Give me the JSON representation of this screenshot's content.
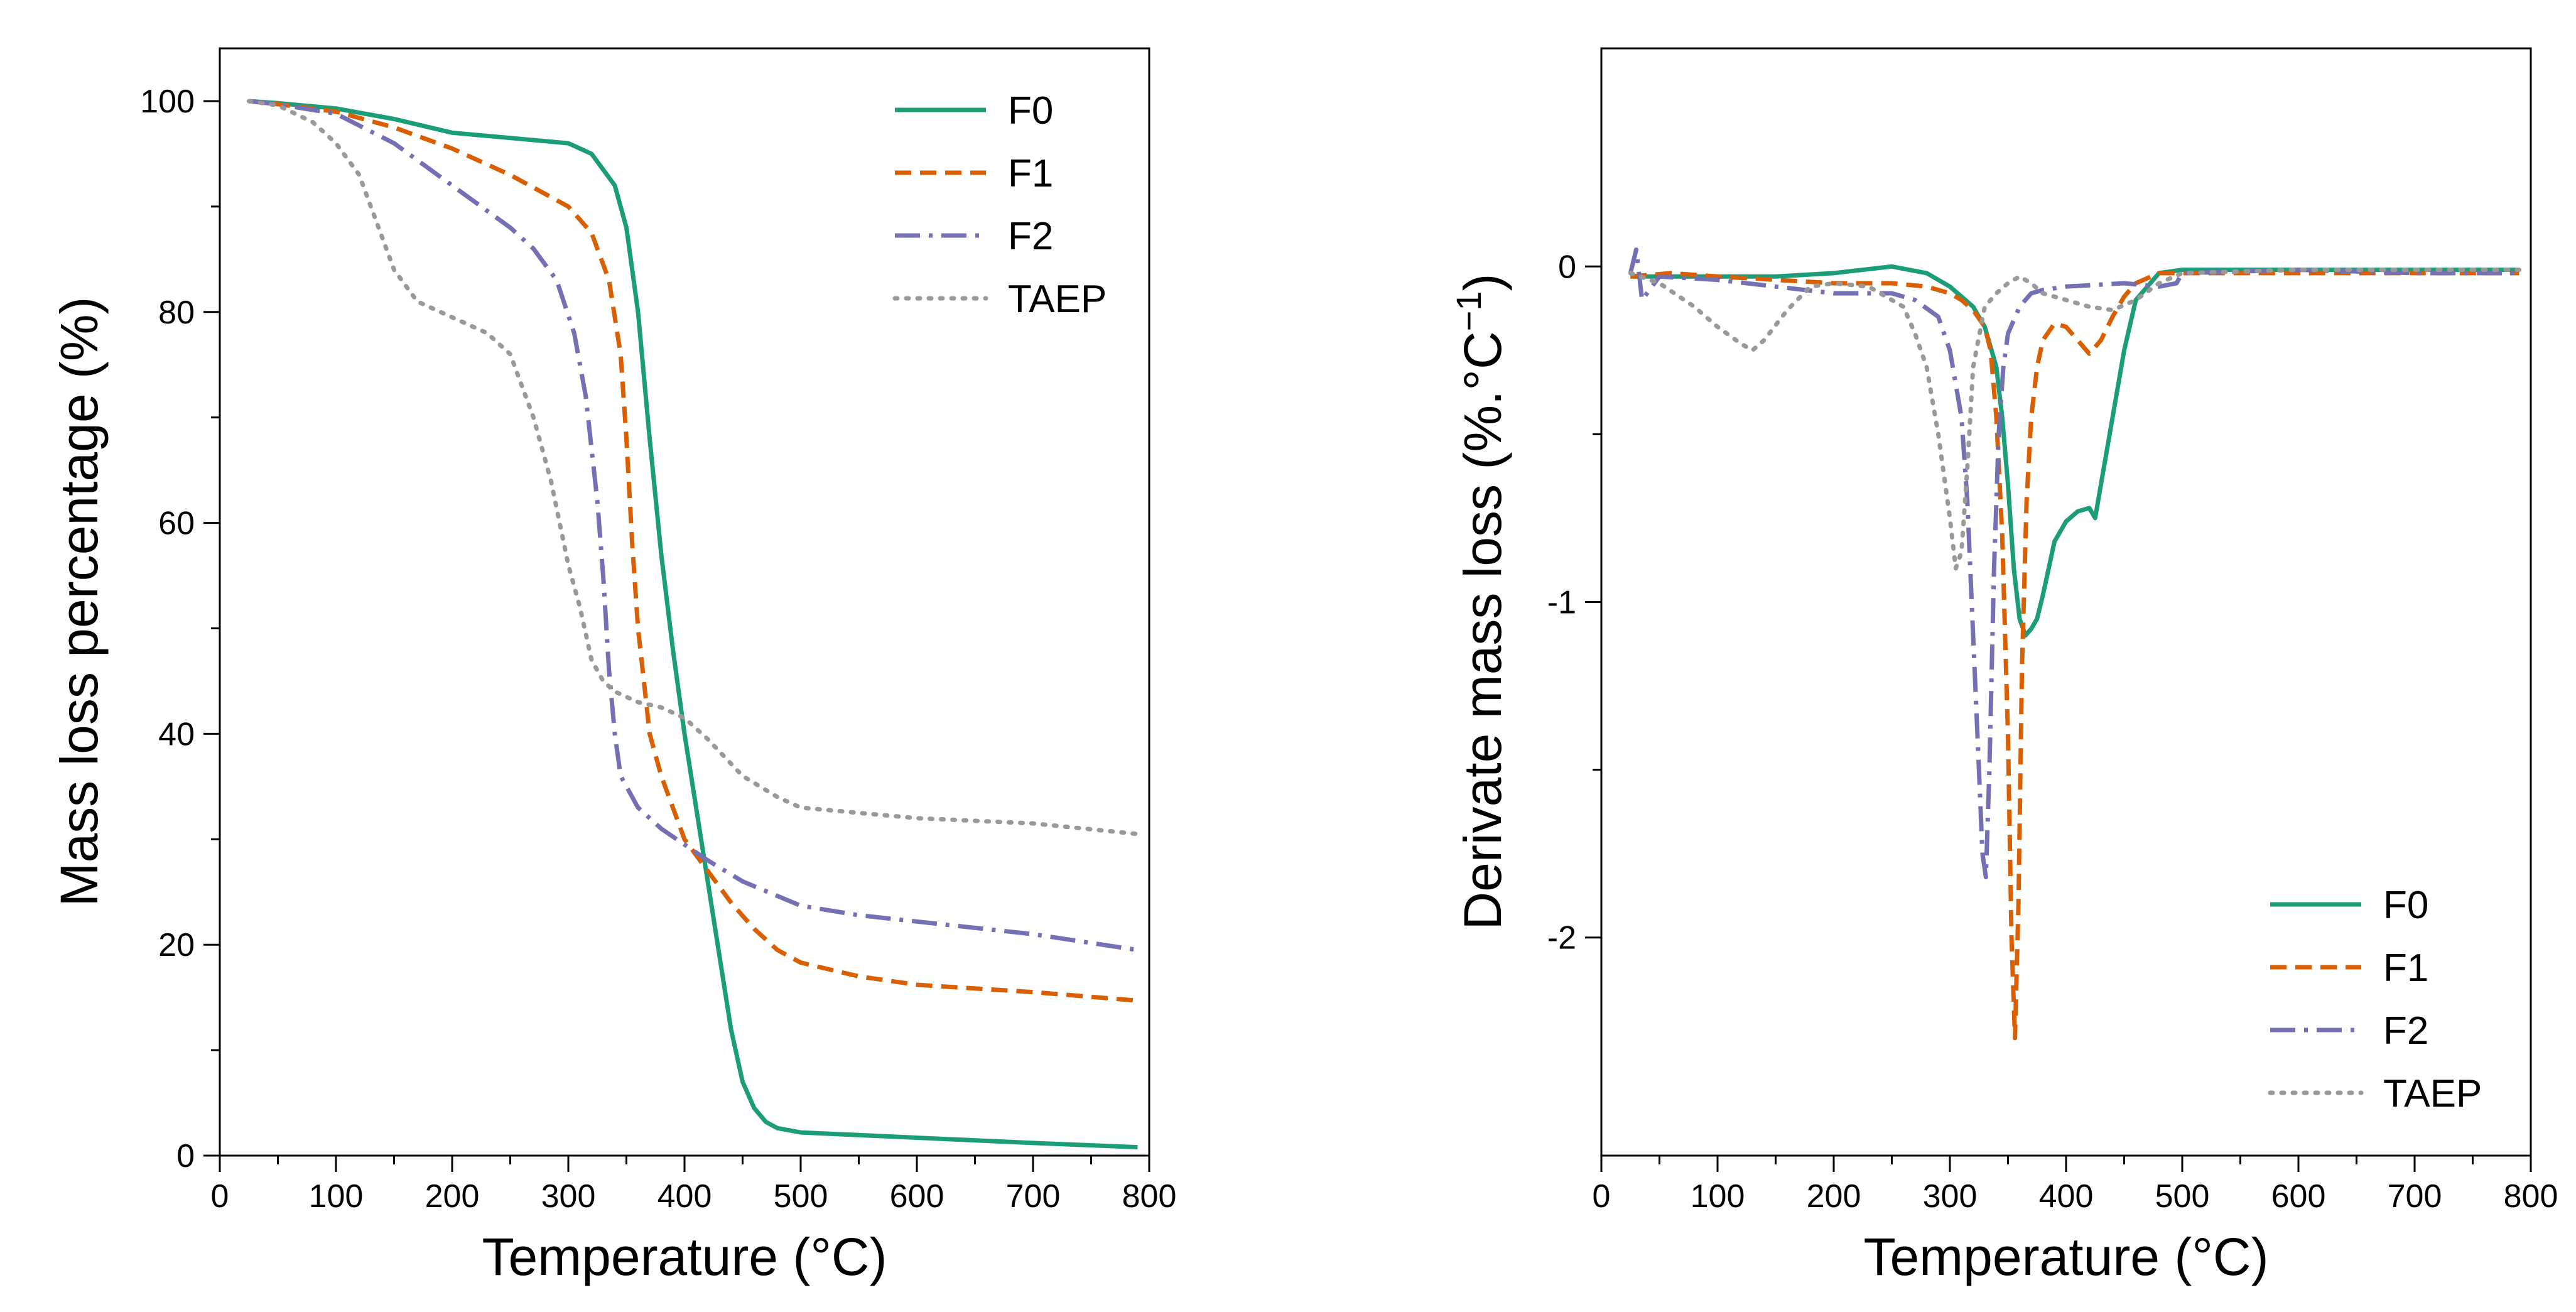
{
  "chart_data": [
    {
      "type": "line",
      "title": "",
      "xlabel": "Temperature (°C)",
      "ylabel": "Mass loss percentage (%)",
      "xlim": [
        0,
        800
      ],
      "ylim": [
        0,
        105
      ],
      "xticks": [
        0,
        100,
        200,
        300,
        400,
        500,
        600,
        700,
        800
      ],
      "xtick_labels": [
        "0",
        "100",
        "200",
        "300",
        "400",
        "500",
        "600",
        "700",
        "800"
      ],
      "yticks": [
        0,
        20,
        40,
        60,
        80,
        100
      ],
      "ytick_labels": [
        "0",
        "20",
        "40",
        "60",
        "80",
        "100"
      ],
      "grid": false,
      "legend_position": "top-right",
      "series": [
        {
          "name": "F0",
          "color": "#1b9e77",
          "dash": "solid",
          "x": [
            25,
            50,
            100,
            150,
            200,
            250,
            300,
            320,
            340,
            350,
            360,
            370,
            380,
            390,
            400,
            410,
            420,
            430,
            440,
            450,
            460,
            470,
            480,
            500,
            600,
            700,
            790
          ],
          "y": [
            100,
            99.8,
            99.3,
            98.3,
            97,
            96.5,
            96,
            95,
            92,
            88,
            80,
            68,
            57,
            48,
            40,
            33,
            26,
            19,
            12,
            7,
            4.5,
            3.2,
            2.6,
            2.2,
            1.7,
            1.2,
            0.8
          ]
        },
        {
          "name": "F1",
          "color": "#d95f02",
          "dash": "dashed",
          "x": [
            25,
            50,
            100,
            150,
            200,
            250,
            300,
            320,
            335,
            345,
            350,
            355,
            360,
            365,
            370,
            380,
            390,
            400,
            420,
            440,
            460,
            480,
            500,
            550,
            600,
            700,
            790
          ],
          "y": [
            100,
            99.7,
            99,
            97.5,
            95.5,
            93,
            90,
            87.5,
            83,
            76,
            68,
            58,
            50,
            45,
            40,
            36,
            33,
            30,
            27,
            24,
            21.5,
            19.5,
            18.3,
            17,
            16.2,
            15.5,
            14.7
          ]
        },
        {
          "name": "F2",
          "color": "#7570b3",
          "dash": "dashdot",
          "x": [
            25,
            50,
            100,
            150,
            200,
            250,
            270,
            290,
            305,
            315,
            325,
            330,
            335,
            340,
            345,
            360,
            380,
            400,
            420,
            450,
            500,
            550,
            600,
            700,
            790
          ],
          "y": [
            100,
            99.7,
            98.8,
            96,
            92,
            88,
            86,
            83,
            78,
            72,
            62,
            55,
            46,
            40,
            36,
            33,
            31,
            29.5,
            28,
            26,
            23.7,
            22.8,
            22.2,
            21,
            19.5
          ]
        },
        {
          "name": "TAEP",
          "color": "#999999",
          "dash": "dotted",
          "x": [
            25,
            50,
            80,
            100,
            120,
            130,
            140,
            150,
            170,
            200,
            230,
            250,
            270,
            285,
            300,
            310,
            320,
            330,
            340,
            360,
            380,
            400,
            420,
            450,
            480,
            500,
            550,
            600,
            700,
            790
          ],
          "y": [
            100,
            99.6,
            98,
            96,
            93,
            90,
            87,
            84,
            81,
            79.5,
            78,
            76,
            70,
            64,
            56,
            52,
            47,
            45,
            44,
            43,
            42.5,
            41.5,
            39.5,
            36,
            34,
            33,
            32.5,
            32,
            31.5,
            30.5
          ]
        }
      ],
      "legend": [
        "F0",
        "F1",
        "F2",
        "TAEP"
      ]
    },
    {
      "type": "line",
      "title": "",
      "xlabel": "Temperature (°C)",
      "ylabel": "Derivate mass loss (%.°C",
      "ylabel_superscript": "−1",
      "ylabel_close": ")",
      "xlim": [
        0,
        800
      ],
      "ylim": [
        -2.65,
        0.65
      ],
      "xticks": [
        0,
        100,
        200,
        300,
        400,
        500,
        600,
        700,
        800
      ],
      "xtick_labels": [
        "0",
        "100",
        "200",
        "300",
        "400",
        "500",
        "600",
        "700",
        "800"
      ],
      "yticks": [
        0,
        -1,
        -2
      ],
      "ytick_labels": [
        "0",
        "-1",
        "-2"
      ],
      "grid": false,
      "legend_position": "bottom-right",
      "series": [
        {
          "name": "F0",
          "color": "#1b9e77",
          "dash": "solid",
          "x": [
            25,
            100,
            150,
            200,
            250,
            280,
            300,
            320,
            330,
            340,
            345,
            350,
            355,
            360,
            365,
            370,
            375,
            380,
            385,
            390,
            400,
            410,
            420,
            425,
            430,
            440,
            450,
            460,
            480,
            500,
            600,
            700,
            790
          ],
          "y": [
            -0.03,
            -0.03,
            -0.03,
            -0.02,
            0,
            -0.02,
            -0.06,
            -0.12,
            -0.18,
            -0.3,
            -0.45,
            -0.65,
            -0.9,
            -1.05,
            -1.1,
            -1.08,
            -1.05,
            -0.98,
            -0.9,
            -0.82,
            -0.76,
            -0.73,
            -0.72,
            -0.75,
            -0.65,
            -0.45,
            -0.25,
            -0.1,
            -0.02,
            -0.01,
            -0.01,
            -0.01,
            -0.01
          ]
        },
        {
          "name": "F1",
          "color": "#d95f02",
          "dash": "dashed",
          "x": [
            25,
            60,
            100,
            150,
            200,
            250,
            280,
            300,
            310,
            320,
            330,
            335,
            340,
            345,
            350,
            353,
            356,
            359,
            362,
            366,
            370,
            375,
            380,
            390,
            400,
            410,
            420,
            430,
            440,
            450,
            460,
            480,
            500,
            600,
            700,
            790
          ],
          "y": [
            -0.03,
            -0.02,
            -0.03,
            -0.04,
            -0.05,
            -0.05,
            -0.06,
            -0.08,
            -0.1,
            -0.13,
            -0.18,
            -0.25,
            -0.45,
            -0.8,
            -1.4,
            -2.0,
            -2.3,
            -1.9,
            -1.2,
            -0.7,
            -0.45,
            -0.3,
            -0.22,
            -0.17,
            -0.18,
            -0.22,
            -0.26,
            -0.22,
            -0.15,
            -0.09,
            -0.05,
            -0.02,
            -0.02,
            -0.02,
            -0.02,
            -0.02
          ]
        },
        {
          "name": "F2",
          "color": "#7570b3",
          "dash": "dashdot",
          "x": [
            25,
            30,
            35,
            50,
            100,
            150,
            200,
            250,
            270,
            290,
            300,
            310,
            315,
            320,
            325,
            328,
            331,
            334,
            338,
            342,
            346,
            350,
            360,
            370,
            380,
            400,
            450,
            480,
            495,
            500,
            600,
            700,
            790
          ],
          "y": [
            -0.02,
            0.05,
            -0.1,
            -0.03,
            -0.04,
            -0.06,
            -0.08,
            -0.08,
            -0.1,
            -0.15,
            -0.25,
            -0.45,
            -0.7,
            -1.1,
            -1.5,
            -1.75,
            -1.82,
            -1.5,
            -0.9,
            -0.5,
            -0.3,
            -0.2,
            -0.12,
            -0.08,
            -0.07,
            -0.06,
            -0.05,
            -0.06,
            -0.05,
            -0.02,
            -0.01,
            -0.02,
            -0.02
          ]
        },
        {
          "name": "TAEP",
          "color": "#999999",
          "dash": "dotted",
          "x": [
            25,
            50,
            80,
            100,
            120,
            130,
            140,
            160,
            180,
            200,
            230,
            260,
            270,
            280,
            290,
            300,
            305,
            310,
            315,
            320,
            330,
            340,
            350,
            360,
            370,
            380,
            400,
            420,
            440,
            460,
            480,
            500,
            600,
            700,
            790
          ],
          "y": [
            -0.02,
            -0.05,
            -0.12,
            -0.18,
            -0.23,
            -0.25,
            -0.22,
            -0.13,
            -0.06,
            -0.05,
            -0.06,
            -0.12,
            -0.2,
            -0.3,
            -0.5,
            -0.75,
            -0.9,
            -0.85,
            -0.6,
            -0.3,
            -0.12,
            -0.08,
            -0.05,
            -0.03,
            -0.05,
            -0.08,
            -0.1,
            -0.12,
            -0.13,
            -0.1,
            -0.05,
            -0.02,
            -0.01,
            -0.01,
            -0.01
          ]
        }
      ],
      "legend": [
        "F0",
        "F1",
        "F2",
        "TAEP"
      ]
    }
  ]
}
